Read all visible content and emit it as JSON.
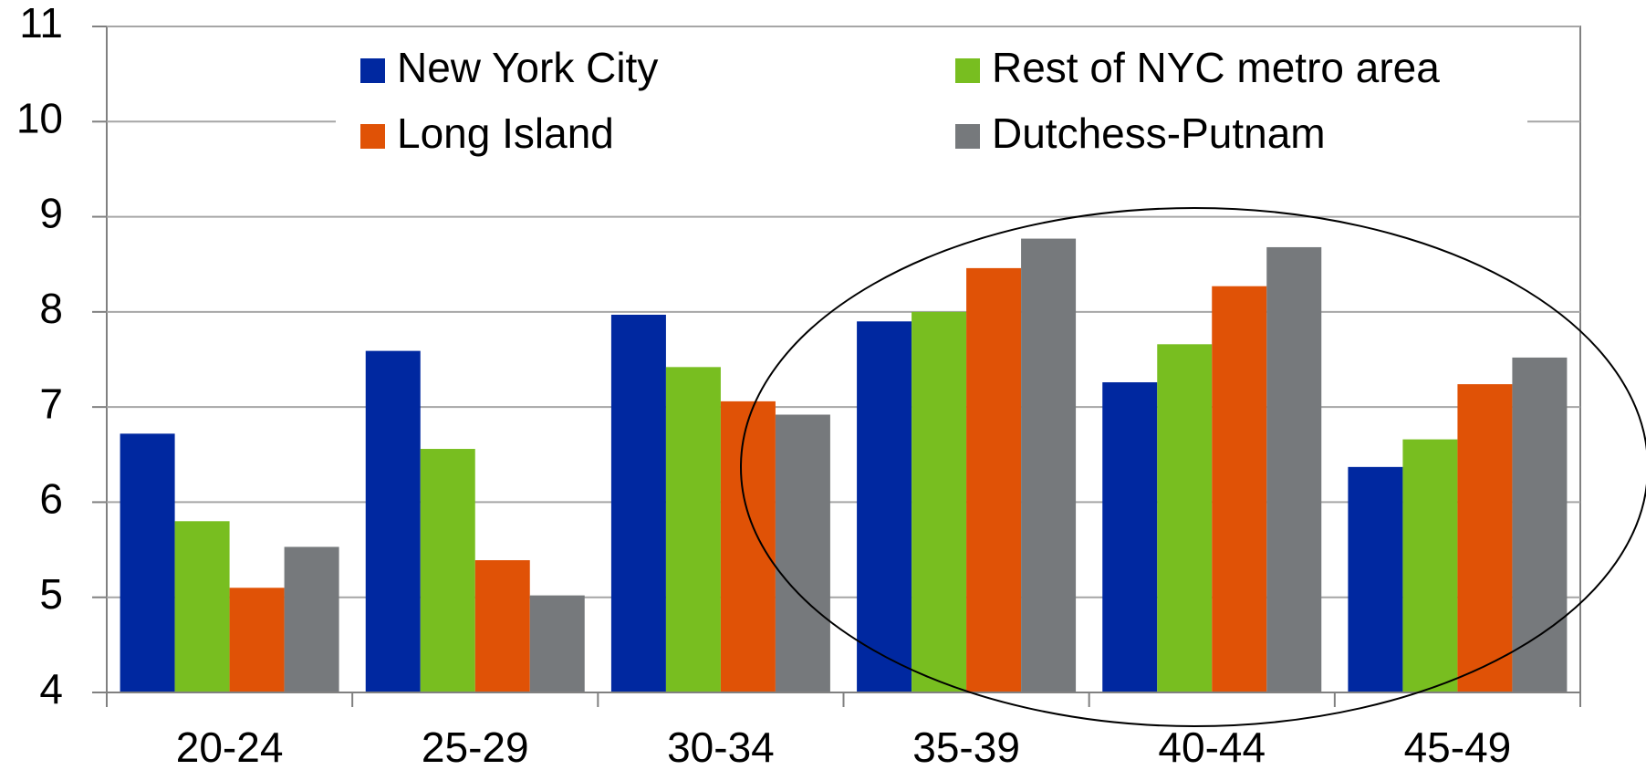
{
  "chart_data": {
    "type": "bar",
    "categories": [
      "20-24",
      "25-29",
      "30-34",
      "35-39",
      "40-44",
      "45-49"
    ],
    "series": [
      {
        "name": "New York City",
        "color": "#0028a0",
        "values": [
          6.72,
          7.59,
          7.97,
          7.9,
          7.26,
          6.37
        ]
      },
      {
        "name": "Rest of NYC metro area",
        "color": "#78be20",
        "values": [
          5.8,
          6.56,
          7.42,
          8.0,
          7.66,
          6.66
        ]
      },
      {
        "name": "Long Island",
        "color": "#e05206",
        "values": [
          5.1,
          5.39,
          7.06,
          8.46,
          8.27,
          7.24
        ]
      },
      {
        "name": "Dutchess-Putnam",
        "color": "#76797c",
        "values": [
          5.53,
          5.02,
          6.92,
          8.77,
          8.68,
          7.52
        ]
      }
    ],
    "ylim": [
      4,
      11
    ],
    "yticks": [
      4,
      5,
      6,
      7,
      8,
      9,
      10,
      11
    ],
    "grid": true,
    "legend": "top"
  }
}
